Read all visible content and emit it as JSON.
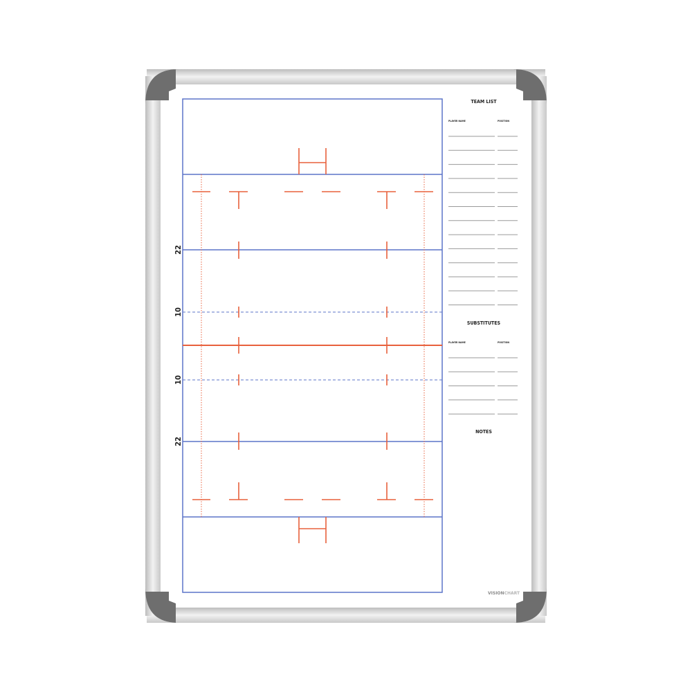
{
  "board": {
    "brand": "VISIONCHART",
    "frame_color": "#d9d9d9",
    "corner_color": "#6b6b6b",
    "pitch_line_color": "#5b74c8",
    "marking_color": "#e8603c"
  },
  "pitch": {
    "line_labels": [
      "22",
      "10",
      "10",
      "22"
    ]
  },
  "team_list": {
    "title": "TEAM LIST",
    "col_name": "PLAYER NAME",
    "col_position": "POSITION",
    "row_count": 13
  },
  "substitutes": {
    "title": "SUBSTITUTES",
    "col_name": "PLAYER NAME",
    "col_position": "POSITION",
    "row_count": 5
  },
  "notes": {
    "title": "NOTES"
  }
}
